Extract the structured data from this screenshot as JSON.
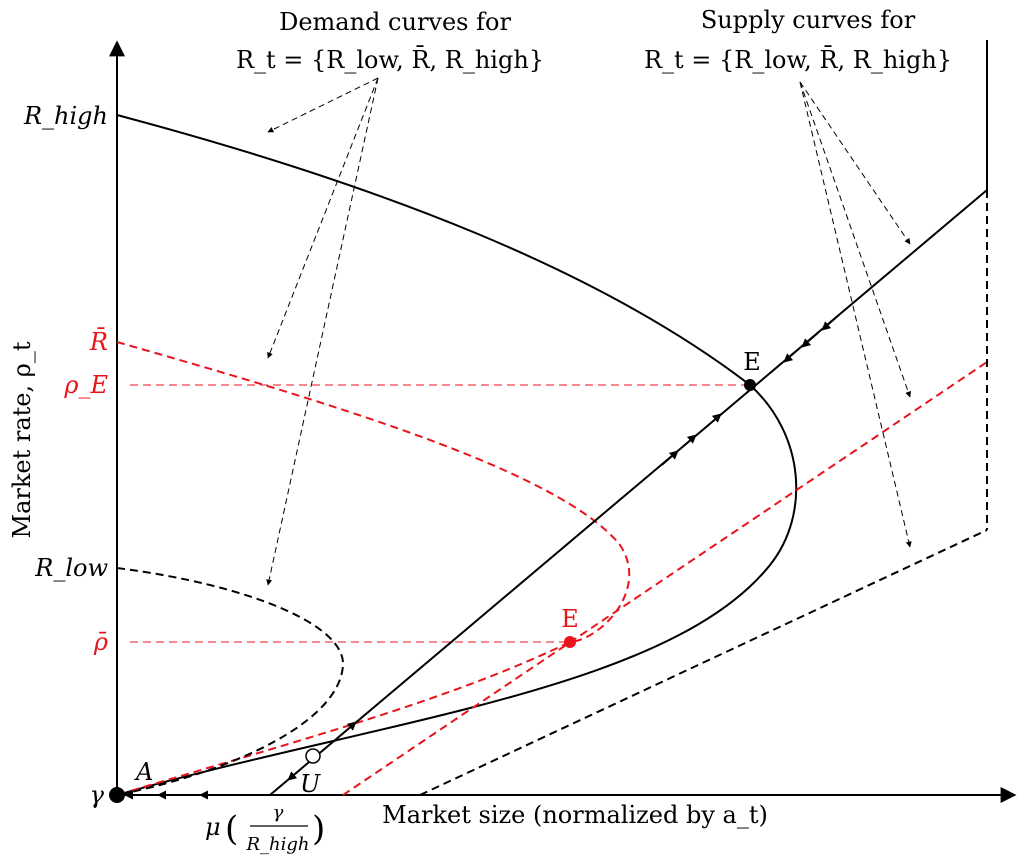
{
  "annotations": {
    "demand_title": "Demand curves for",
    "demand_set": "R_t = {R_low, R̄, R_high}",
    "supply_title": "Supply curves for",
    "supply_set": "R_t = {R_low, R̄, R_high}"
  },
  "axes": {
    "ylabel": "Market rate, ρ_t",
    "xlabel": "Market size (normalized by a_t)"
  },
  "y_ticks": {
    "r_high": "R_high",
    "r_bar": "R̄",
    "rho_e": "ρ_E",
    "r_low": "R_low",
    "rho_bar": "ρ̄",
    "gamma": "γ"
  },
  "points": {
    "a": "A",
    "u": "U",
    "e_black": "E",
    "e_red": "E"
  },
  "x_tick": {
    "mu": "μ",
    "gamma": "γ",
    "r_high": "R_high"
  },
  "colors": {
    "black": "#000000",
    "red": "#e8141b"
  }
}
